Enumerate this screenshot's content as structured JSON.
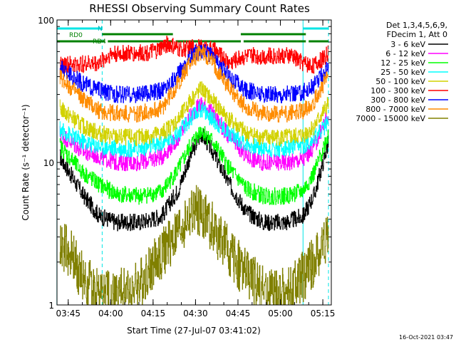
{
  "chart_data": {
    "type": "line",
    "title": "RHESSI Observing Summary Count Rates",
    "xlabel": "Start Time (27-Jul-07 03:41:02)",
    "ylabel": "Count Rate (s⁻¹ detector⁻¹)",
    "y_scale": "log",
    "ylim": [
      1,
      100
    ],
    "xlim": [
      "03:41:02",
      "05:18:00"
    ],
    "x_ticks": [
      "03:45",
      "04:00",
      "04:15",
      "04:30",
      "04:45",
      "05:00",
      "05:15"
    ],
    "y_ticks": [
      "1",
      "10",
      "100"
    ],
    "legend_position": "top-right",
    "legend_header": [
      "Det 1,3,4,5,6,9,",
      "FDecim 1, Att 0"
    ],
    "series": [
      {
        "name": "3 - 6 keV",
        "color": "#000000",
        "x": [
          "03:42",
          "03:50",
          "03:56",
          "04:02",
          "04:10",
          "04:18",
          "04:24",
          "04:28",
          "04:32",
          "04:36",
          "04:42",
          "04:48",
          "04:54",
          "05:02",
          "05:08",
          "05:12",
          "05:17"
        ],
        "y": [
          11,
          6,
          4.2,
          3.8,
          3.8,
          4.2,
          6.5,
          11,
          16,
          12,
          7,
          4.5,
          3.8,
          3.8,
          4.2,
          6,
          14
        ]
      },
      {
        "name": "6 - 12 keV",
        "color": "#ff00ff",
        "x": [
          "03:42",
          "03:50",
          "03:56",
          "04:02",
          "04:10",
          "04:18",
          "04:24",
          "04:28",
          "04:32",
          "04:36",
          "04:42",
          "04:48",
          "04:54",
          "05:02",
          "05:08",
          "05:12",
          "05:17"
        ],
        "y": [
          16,
          12,
          11,
          10,
          10,
          11,
          15,
          21,
          26,
          22,
          15,
          11,
          10,
          10,
          10.5,
          13,
          22
        ]
      },
      {
        "name": "12 - 25 keV",
        "color": "#00ff00",
        "x": [
          "03:42",
          "03:50",
          "03:56",
          "04:02",
          "04:10",
          "04:18",
          "04:24",
          "04:28",
          "04:32",
          "04:36",
          "04:42",
          "04:48",
          "04:54",
          "05:02",
          "05:08",
          "05:12",
          "05:17"
        ],
        "y": [
          13,
          8.5,
          7,
          6,
          5.8,
          6.2,
          9,
          13,
          17,
          14,
          9,
          6.5,
          5.8,
          5.8,
          6.3,
          8.5,
          16
        ]
      },
      {
        "name": "25 - 50 keV",
        "color": "#00ffff",
        "x": [
          "03:42",
          "03:50",
          "03:56",
          "04:02",
          "04:10",
          "04:18",
          "04:24",
          "04:28",
          "04:32",
          "04:36",
          "04:42",
          "04:48",
          "04:54",
          "05:02",
          "05:08",
          "05:12",
          "05:17"
        ],
        "y": [
          17,
          14,
          13,
          12.5,
          12.5,
          13.5,
          16,
          20,
          24,
          20,
          16,
          13.5,
          12.5,
          12.5,
          13,
          15,
          19
        ]
      },
      {
        "name": "50 - 100 keV",
        "color": "#d2d200",
        "x": [
          "03:42",
          "03:50",
          "03:56",
          "04:02",
          "04:10",
          "04:18",
          "04:24",
          "04:28",
          "04:32",
          "04:36",
          "04:42",
          "04:48",
          "04:54",
          "05:02",
          "05:08",
          "05:12",
          "05:17"
        ],
        "y": [
          24,
          18,
          16,
          15,
          15,
          16,
          20,
          27,
          33,
          27,
          20,
          16,
          15,
          15,
          15.5,
          18,
          26
        ]
      },
      {
        "name": "100 - 300 keV",
        "color": "#ff0000",
        "x": [
          "03:42",
          "03:50",
          "03:56",
          "04:00",
          "04:08",
          "04:16",
          "04:20",
          "04:24",
          "04:30",
          "04:36",
          "04:42",
          "04:46",
          "04:50",
          "04:58",
          "05:04",
          "05:08",
          "05:12",
          "05:17"
        ],
        "y": [
          48,
          49,
          50,
          58,
          58,
          60,
          68,
          62,
          64,
          62,
          50,
          55,
          56,
          56,
          56,
          50,
          48,
          58
        ]
      },
      {
        "name": "300 - 800 keV",
        "color": "#0000ff",
        "x": [
          "03:42",
          "03:50",
          "03:56",
          "04:02",
          "04:10",
          "04:18",
          "04:24",
          "04:28",
          "04:32",
          "04:36",
          "04:42",
          "04:48",
          "04:54",
          "05:02",
          "05:08",
          "05:12",
          "05:17"
        ],
        "y": [
          46,
          36,
          32,
          30,
          30,
          32,
          42,
          55,
          62,
          55,
          40,
          32,
          30,
          30,
          31,
          35,
          47
        ]
      },
      {
        "name": "800 - 7000 keV",
        "color": "#ff8c00",
        "x": [
          "03:42",
          "03:50",
          "03:56",
          "04:02",
          "04:10",
          "04:18",
          "04:24",
          "04:28",
          "04:32",
          "04:36",
          "04:42",
          "04:48",
          "04:54",
          "05:02",
          "05:08",
          "05:12",
          "05:17"
        ],
        "y": [
          40,
          28,
          23,
          22,
          22,
          24,
          36,
          50,
          60,
          50,
          33,
          24,
          22,
          22,
          23,
          27,
          42
        ]
      },
      {
        "name": "7000 - 15000 keV",
        "color": "#808000",
        "x": [
          "03:42",
          "03:46",
          "03:50",
          "03:54",
          "03:58",
          "04:02",
          "04:06",
          "04:10",
          "04:14",
          "04:18",
          "04:22",
          "04:26",
          "04:30",
          "04:34",
          "04:38",
          "04:42",
          "04:46",
          "04:50",
          "04:54",
          "04:58",
          "05:02",
          "05:06",
          "05:10",
          "05:14",
          "05:17"
        ],
        "y": [
          2.7,
          2.2,
          1.6,
          1.3,
          1.2,
          1.2,
          1.25,
          1.4,
          1.8,
          2.3,
          2.9,
          3.8,
          4.6,
          4.0,
          3.0,
          2.3,
          1.8,
          1.5,
          1.3,
          1.2,
          1.2,
          1.4,
          1.8,
          2.4,
          3.3
        ]
      }
    ],
    "flag_bars": [
      {
        "label": "RD0",
        "color": "#008000",
        "segments": [
          [
            "03:41",
            "03:58"
          ],
          [
            "03:59",
            "04:22"
          ],
          [
            "04:23",
            "04:46"
          ],
          [
            "04:47",
            "05:09"
          ],
          [
            "05:10",
            "05:17"
          ]
        ]
      },
      {
        "label": "RD4",
        "color": "#008000",
        "segments": [
          [
            "03:57",
            "04:22"
          ],
          [
            "04:46",
            "05:09"
          ]
        ]
      },
      {
        "label": "N",
        "color": "#00e5e5",
        "segments": [
          [
            "03:41",
            "03:57"
          ],
          [
            "05:08",
            "05:17"
          ]
        ]
      }
    ],
    "vlines": [
      {
        "x": "03:41",
        "color": "#00e5e5",
        "style": "solid"
      },
      {
        "x": "03:57",
        "color": "#00e5e5",
        "style": "dashed"
      },
      {
        "x": "05:08",
        "color": "#00e5e5",
        "style": "solid"
      },
      {
        "x": "05:17",
        "color": "#00e5e5",
        "style": "dashed"
      }
    ]
  },
  "footer": {
    "timestamp": "16-Oct-2021 03:47"
  }
}
